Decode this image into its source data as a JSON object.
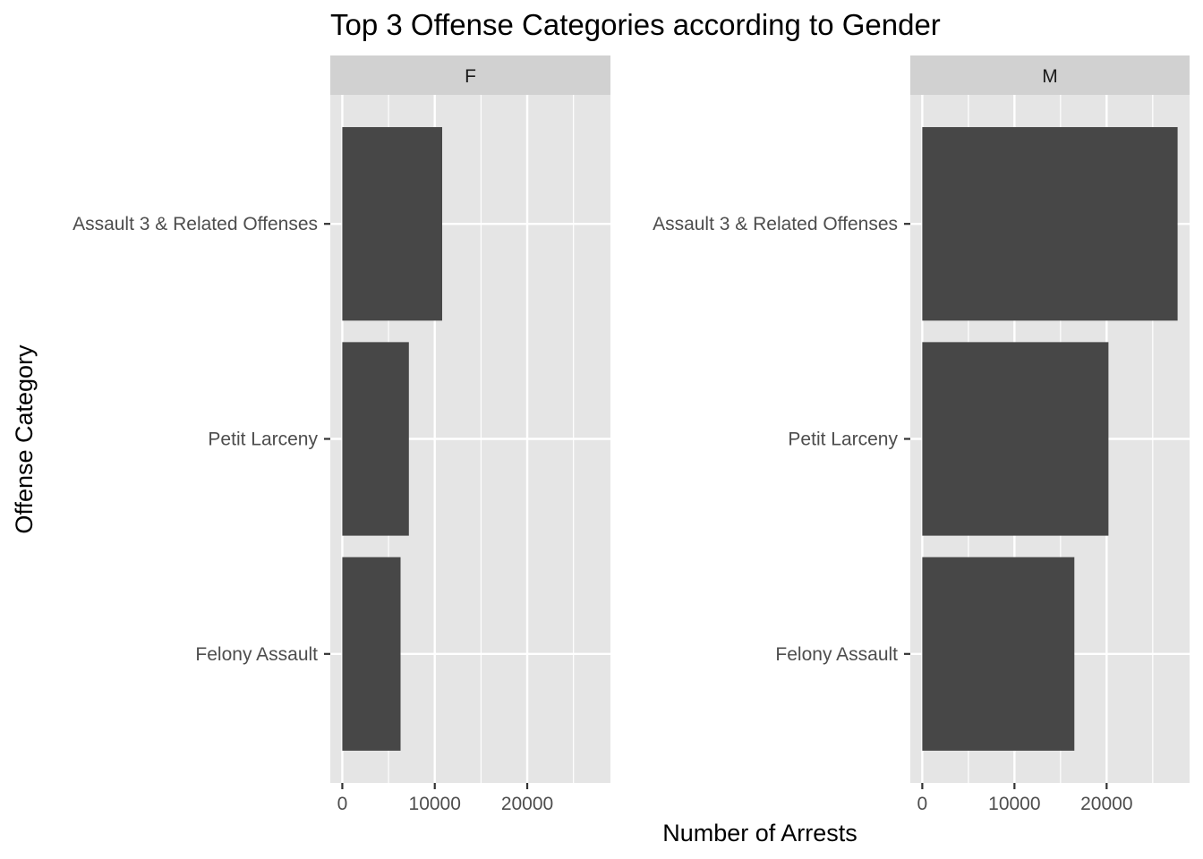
{
  "chart_data": {
    "type": "bar",
    "orientation": "horizontal",
    "title": "Top 3 Offense Categories according to Gender",
    "xlabel": "Number of Arrests",
    "ylabel": "Offense Category",
    "categories": [
      "Assault 3 & Related Offenses",
      "Petit Larceny",
      "Felony Assault"
    ],
    "facets": [
      {
        "label": "F",
        "values": [
          10800,
          7200,
          6300
        ]
      },
      {
        "label": "M",
        "values": [
          27700,
          20200,
          16500
        ]
      }
    ],
    "xlim": [
      -1300,
      29000
    ],
    "xticks": [
      0,
      10000,
      20000
    ],
    "xtick_labels": [
      "0",
      "10000",
      "20000"
    ],
    "grid": true,
    "colors": {
      "bar": "#474747",
      "panel": "#e5e5e5",
      "strip": "#d1d1d1",
      "grid": "#ffffff"
    }
  }
}
